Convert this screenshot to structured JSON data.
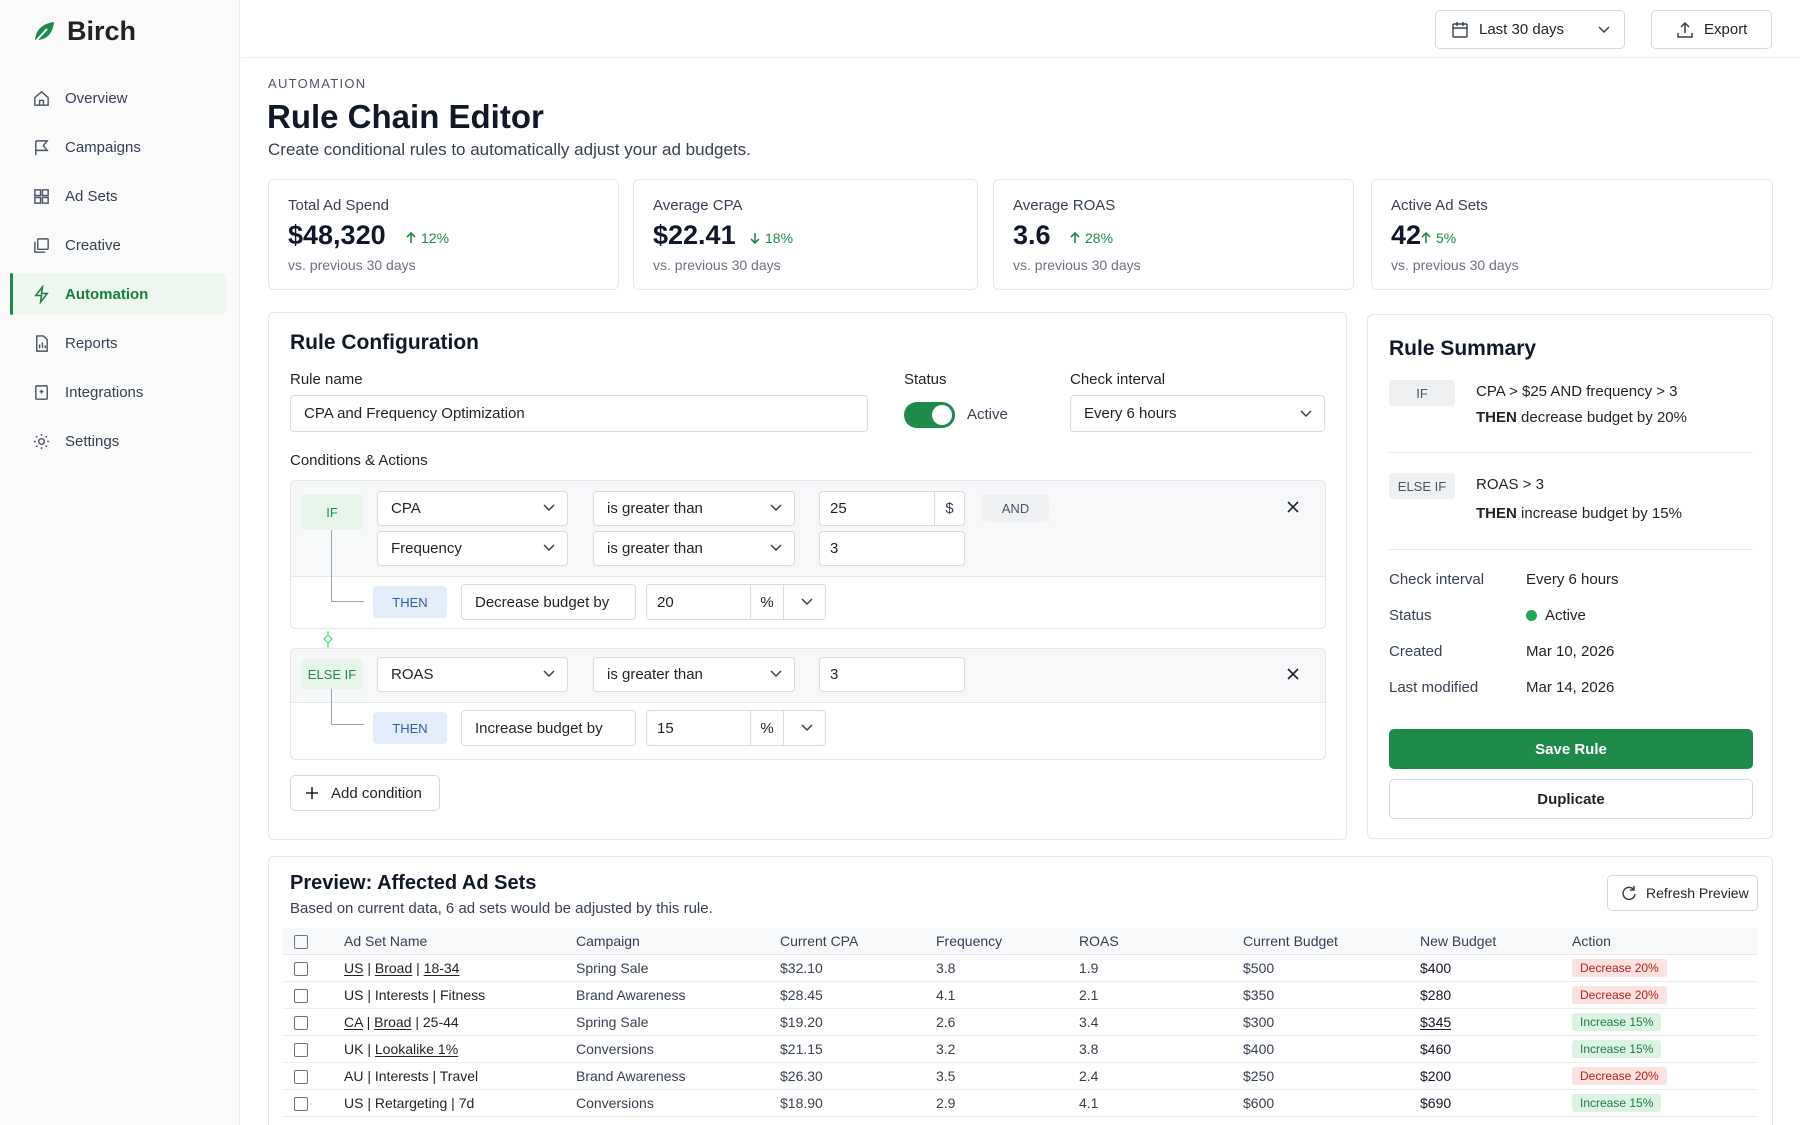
{
  "app": {
    "name": "Birch"
  },
  "sidebar": {
    "items": [
      {
        "label": "Overview",
        "icon": "home-icon"
      },
      {
        "label": "Campaigns",
        "icon": "flag-icon"
      },
      {
        "label": "Ad Sets",
        "icon": "grid-icon"
      },
      {
        "label": "Creative",
        "icon": "layers-icon"
      },
      {
        "label": "Automation",
        "icon": "bolt-icon",
        "active": true
      },
      {
        "label": "Reports",
        "icon": "report-icon"
      },
      {
        "label": "Integrations",
        "icon": "integration-icon"
      },
      {
        "label": "Settings",
        "icon": "gear-icon"
      }
    ]
  },
  "topbar": {
    "date_range": "Last 30 days",
    "export_label": "Export"
  },
  "header": {
    "eyebrow": "AUTOMATION",
    "title": "Rule Chain Editor",
    "subtitle": "Create conditional rules to automatically adjust your ad budgets."
  },
  "kpis": [
    {
      "title": "Total Ad Spend",
      "value": "$48,320",
      "delta": "12%",
      "direction": "up",
      "sub": "vs. previous 30 days"
    },
    {
      "title": "Average CPA",
      "value": "$22.41",
      "delta": "18%",
      "direction": "down",
      "sub": "vs. previous 30 days"
    },
    {
      "title": "Average ROAS",
      "value": "3.6",
      "delta": "28%",
      "direction": "up",
      "sub": "vs. previous 30 days"
    },
    {
      "title": "Active Ad Sets",
      "value": "42",
      "delta": "5%",
      "direction": "up",
      "sub": "vs. previous 30 days"
    }
  ],
  "config": {
    "title": "Rule Configuration",
    "rule_name_label": "Rule name",
    "rule_name_value": "CPA and Frequency Optimization",
    "status_label": "Status",
    "status_value": "Active",
    "interval_label": "Check interval",
    "interval_value": "Every 6 hours",
    "conditions_label": "Conditions & Actions",
    "if_block": {
      "tag": "IF",
      "cond1": {
        "metric": "CPA",
        "operator": "is greater than",
        "value": "25",
        "unit": "$",
        "joiner": "AND"
      },
      "cond2": {
        "metric": "Frequency",
        "operator": "is greater than",
        "value": "3"
      },
      "then_tag": "THEN",
      "action": "Decrease budget by",
      "action_value": "20",
      "action_unit": "%"
    },
    "else_block": {
      "tag": "ELSE IF",
      "cond1": {
        "metric": "ROAS",
        "operator": "is greater than",
        "value": "3"
      },
      "then_tag": "THEN",
      "action": "Increase budget by",
      "action_value": "15",
      "action_unit": "%"
    },
    "add_condition": "Add condition"
  },
  "summary": {
    "title": "Rule Summary",
    "if_tag": "IF",
    "if_text": "CPA > $25 AND frequency > 3",
    "if_then_kw": "THEN",
    "if_then_text": "decrease budget by 20%",
    "else_tag": "ELSE IF",
    "else_text": "ROAS > 3",
    "else_then_kw": "THEN",
    "else_then_text": "increase budget by 15%",
    "details": [
      {
        "label": "Check interval",
        "value": "Every 6 hours"
      },
      {
        "label": "Status",
        "value": "Active"
      },
      {
        "label": "Created",
        "value": "Mar 10, 2026"
      },
      {
        "label": "Last modified",
        "value": "Mar 14, 2026"
      }
    ],
    "save_label": "Save Rule",
    "duplicate_label": "Duplicate"
  },
  "preview": {
    "title": "Preview: Affected Ad Sets",
    "subtitle": "Based on current data, 6 ad sets would be adjusted by this rule.",
    "refresh_label": "Refresh Preview",
    "columns": [
      "Ad Set Name",
      "Campaign",
      "Current CPA",
      "Frequency",
      "ROAS",
      "Current Budget",
      "New Budget",
      "Action"
    ],
    "rows": [
      {
        "name": [
          "US",
          "Broad",
          "18-34"
        ],
        "campaign": "Spring Sale",
        "cpa": "$32.10",
        "freq": "3.8",
        "roas": "1.9",
        "budget": "$500",
        "new_budget": "$400",
        "action": "Decrease 20%",
        "type": "dec"
      },
      {
        "name": [
          "US",
          "Interests",
          "Fitness"
        ],
        "campaign": "Brand Awareness",
        "cpa": "$28.45",
        "freq": "4.1",
        "roas": "2.1",
        "budget": "$350",
        "new_budget": "$280",
        "action": "Decrease 20%",
        "type": "dec"
      },
      {
        "name": [
          "CA",
          "Broad",
          "25-44"
        ],
        "campaign": "Spring Sale",
        "cpa": "$19.20",
        "freq": "2.6",
        "roas": "3.4",
        "budget": "$300",
        "new_budget": "$345",
        "action": "Increase 15%",
        "type": "inc"
      },
      {
        "name": [
          "UK",
          "Lookalike 1%"
        ],
        "campaign": "Conversions",
        "cpa": "$21.15",
        "freq": "3.2",
        "roas": "3.8",
        "budget": "$400",
        "new_budget": "$460",
        "action": "Increase 15%",
        "type": "inc"
      },
      {
        "name": [
          "AU",
          "Interests",
          "Travel"
        ],
        "campaign": "Brand Awareness",
        "cpa": "$26.30",
        "freq": "3.5",
        "roas": "2.4",
        "budget": "$250",
        "new_budget": "$200",
        "action": "Decrease 20%",
        "type": "dec"
      },
      {
        "name": [
          "US",
          "Retargeting",
          "7d"
        ],
        "campaign": "Conversions",
        "cpa": "$18.90",
        "freq": "2.9",
        "roas": "4.1",
        "budget": "$600",
        "new_budget": "$690",
        "action": "Increase 15%",
        "type": "inc"
      }
    ]
  },
  "colors": {
    "accent": "#1e8a4c",
    "danger": "#b42318"
  }
}
